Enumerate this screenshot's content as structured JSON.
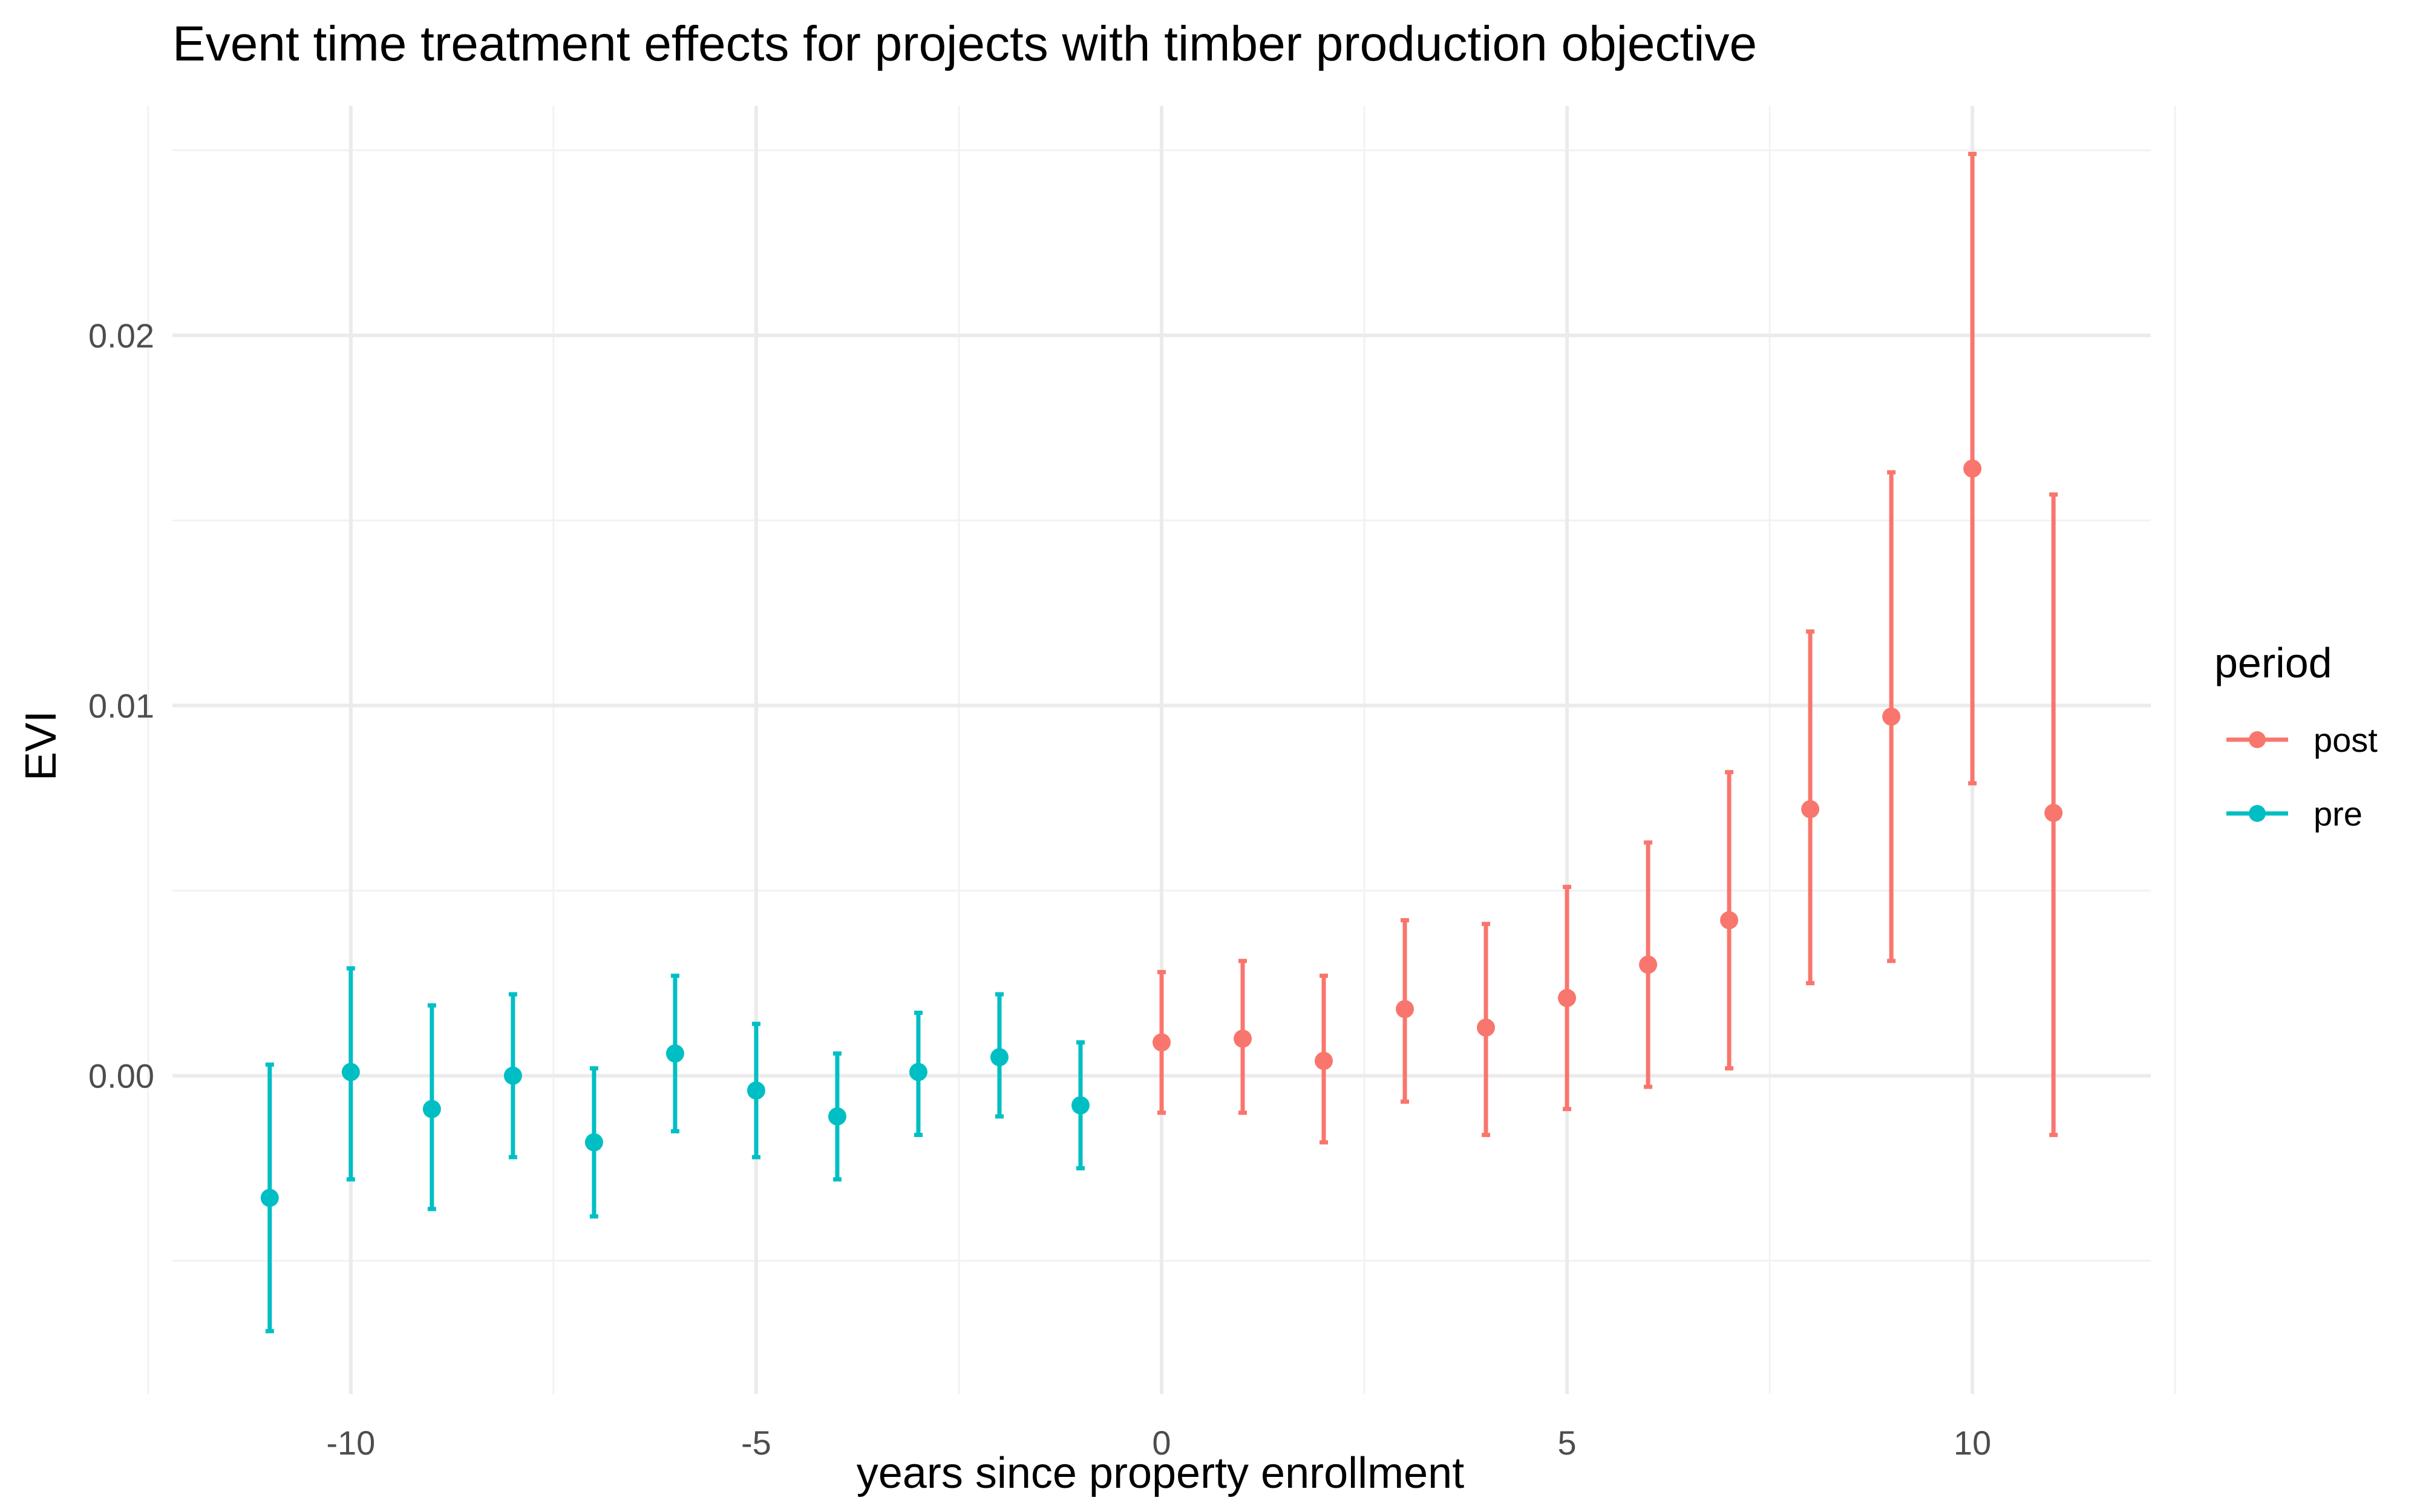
{
  "chart_data": {
    "type": "errorbar",
    "title": "Event time treatment effects for projects with timber production objective",
    "xlabel": "years since property enrollment",
    "ylabel": "EVI",
    "xlim": [
      -12.2,
      12.2
    ],
    "ylim": [
      -0.0086,
      0.0262
    ],
    "x_ticks": [
      -10,
      -5,
      0,
      5,
      10
    ],
    "x_tick_labels": [
      "-10",
      "-5",
      "0",
      "5",
      "10"
    ],
    "y_ticks": [
      0.0,
      0.01,
      0.02
    ],
    "y_tick_labels": [
      "0.00",
      "0.01",
      "0.02"
    ],
    "grid": true,
    "legend": {
      "title": "period",
      "placement": "right",
      "entries": [
        {
          "label": "post",
          "color": "#F8766D"
        },
        {
          "label": "pre",
          "color": "#00BFC4"
        }
      ]
    },
    "series": [
      {
        "name": "pre",
        "color": "#00BFC4",
        "x": [
          -11,
          -10,
          -9,
          -8,
          -7,
          -6,
          -5,
          -4,
          -3,
          -2,
          -1
        ],
        "y": [
          -0.0033,
          0.0001,
          -0.0009,
          0.0,
          -0.0018,
          0.0006,
          -0.0004,
          -0.0011,
          0.0001,
          0.0005,
          -0.0008
        ],
        "ymin": [
          -0.0069,
          -0.0028,
          -0.0036,
          -0.0022,
          -0.0038,
          -0.0015,
          -0.0022,
          -0.0028,
          -0.0016,
          -0.0011,
          -0.0025
        ],
        "ymax": [
          0.0003,
          0.0029,
          0.0019,
          0.0022,
          0.0002,
          0.0027,
          0.0014,
          0.0006,
          0.0017,
          0.0022,
          0.0009
        ]
      },
      {
        "name": "post",
        "color": "#F8766D",
        "x": [
          0,
          1,
          2,
          3,
          4,
          5,
          6,
          7,
          8,
          9,
          10,
          11
        ],
        "y": [
          0.0009,
          0.001,
          0.0004,
          0.0018,
          0.0013,
          0.0021,
          0.003,
          0.0042,
          0.0072,
          0.0097,
          0.0164,
          0.0071
        ],
        "ymin": [
          -0.001,
          -0.001,
          -0.0018,
          -0.0007,
          -0.0016,
          -0.0009,
          -0.0003,
          0.0002,
          0.0025,
          0.0031,
          0.0079,
          -0.0016
        ],
        "ymax": [
          0.0028,
          0.0031,
          0.0027,
          0.0042,
          0.0041,
          0.0051,
          0.0063,
          0.0082,
          0.012,
          0.0163,
          0.0249,
          0.0157
        ]
      }
    ]
  }
}
